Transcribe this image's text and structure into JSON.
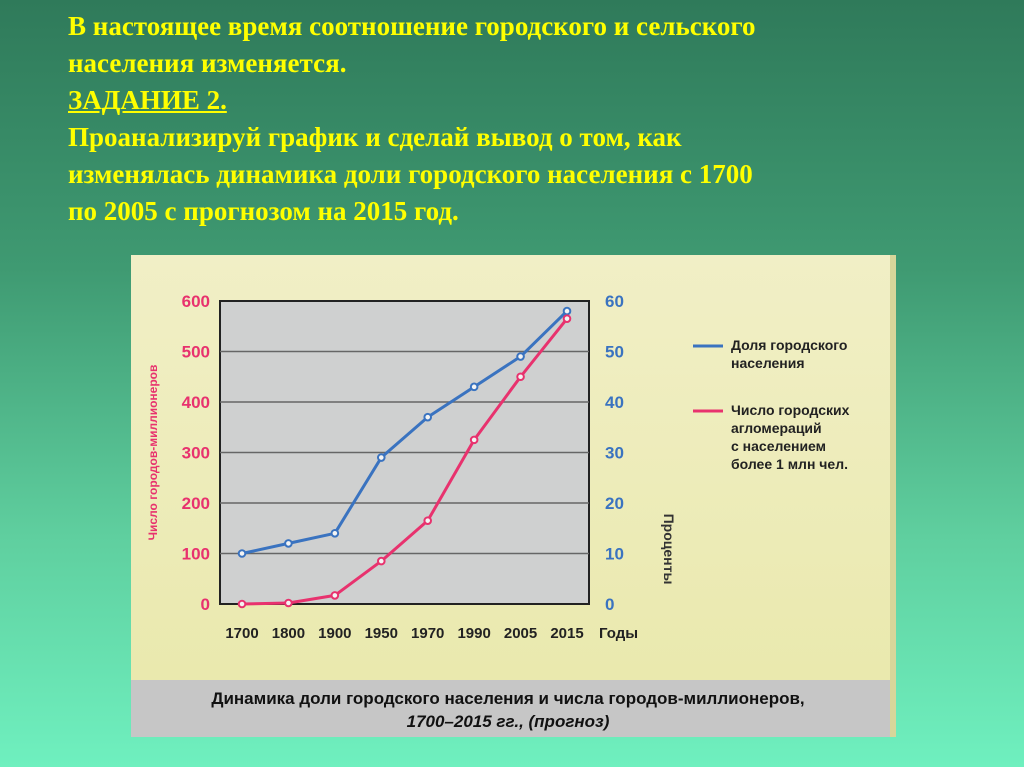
{
  "header": {
    "line1": "В настоящее время  соотношение городского и сельского",
    "line2": "населения изменяется.",
    "task_title": "ЗАДАНИЕ 2.",
    "line4": "Проанализируй график и сделай вывод о том, как",
    "line5": "изменялась динамика доли городского населения с 1700",
    "line6": "по 2005 с прогнозом на 2015 год."
  },
  "chart_data": {
    "type": "line",
    "categories": [
      "1700",
      "1800",
      "1900",
      "1950",
      "1970",
      "1990",
      "2005",
      "2015"
    ],
    "x_axis_label": "Годы",
    "y_left_label": "Число городов-миллионеров",
    "y_left_ticks": [
      "0",
      "100",
      "200",
      "300",
      "400",
      "500",
      "600"
    ],
    "y_left_range": [
      0,
      600
    ],
    "y_right_label": "Проценты",
    "y_right_ticks": [
      "0",
      "10",
      "20",
      "30",
      "40",
      "50",
      "60"
    ],
    "y_right_range": [
      0,
      60
    ],
    "series": [
      {
        "name": "Доля городского населения",
        "axis": "right",
        "color": "#3a73c0",
        "values": [
          10,
          12,
          14,
          29,
          37,
          43,
          49,
          58
        ]
      },
      {
        "name": "Число городских агломераций с населением более 1 млн чел.",
        "axis": "left",
        "color": "#e8326e",
        "values": [
          0,
          2,
          17,
          85,
          165,
          325,
          450,
          565
        ]
      }
    ],
    "legend": {
      "items": [
        [
          "Доля городского",
          "населения"
        ],
        [
          "Число городских",
          "агломераций",
          "с населением",
          "более 1 млн чел."
        ]
      ]
    },
    "caption_line1": "Динамика доли городского населения и числа городов-миллионеров,",
    "caption_line2": "1700–2015 гг., (прогноз)",
    "grid": true,
    "colors": {
      "plot_bg": "#cfd0d0",
      "grid": "#666666",
      "axis_text_left": "#e8326e",
      "axis_text_right": "#3a73c0",
      "caption_band": "#c6c6c6"
    }
  }
}
